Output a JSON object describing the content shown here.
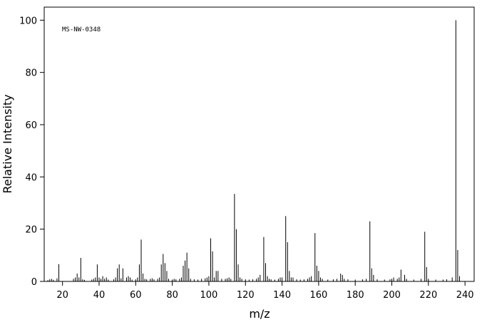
{
  "chart_data": {
    "type": "stem",
    "annotation": "MS-NW-0348",
    "xlabel": "m/z",
    "ylabel": "Relative Intensity",
    "color": "#000000",
    "x": [
      12,
      13,
      14,
      15,
      17,
      18,
      26,
      27,
      28,
      29,
      30,
      31,
      32,
      36,
      37,
      38,
      39,
      40,
      41,
      42,
      43,
      44,
      45,
      48,
      49,
      50,
      51,
      52,
      53,
      55,
      56,
      57,
      58,
      60,
      61,
      62,
      63,
      64,
      65,
      66,
      68,
      69,
      70,
      72,
      73,
      74,
      75,
      76,
      77,
      78,
      80,
      81,
      82,
      84,
      85,
      86,
      87,
      88,
      89,
      90,
      92,
      94,
      96,
      98,
      99,
      100,
      101,
      102,
      103,
      104,
      105,
      107,
      109,
      110,
      111,
      112,
      114,
      115,
      116,
      117,
      118,
      120,
      122,
      124,
      126,
      127,
      128,
      130,
      131,
      132,
      133,
      134,
      136,
      138,
      139,
      140,
      142,
      143,
      144,
      145,
      146,
      148,
      150,
      152,
      154,
      155,
      156,
      158,
      159,
      160,
      161,
      162,
      165,
      168,
      170,
      172,
      173,
      174,
      176,
      180,
      184,
      186,
      188,
      189,
      190,
      192,
      196,
      199,
      200,
      201,
      203,
      204,
      205,
      207,
      208,
      212,
      216,
      218,
      219,
      220,
      224,
      228,
      230,
      233,
      235,
      236,
      237
    ],
    "values": [
      0.5,
      0.8,
      1,
      0.6,
      1.2,
      6.6,
      1,
      1.5,
      3,
      1.5,
      9,
      0.8,
      0.6,
      0.7,
      1,
      1.5,
      6.5,
      1.5,
      1,
      2,
      1,
      1.5,
      0.7,
      0.8,
      1.5,
      5,
      6.5,
      1.2,
      5,
      1.5,
      2,
      1.5,
      0.7,
      0.8,
      1.5,
      6.5,
      16,
      3,
      1,
      0.8,
      1,
      1.2,
      0.8,
      1,
      1.5,
      6.5,
      10.5,
      7,
      4,
      1,
      0.7,
      1,
      0.8,
      1,
      1.5,
      6,
      8,
      11,
      5,
      1,
      0.8,
      0.7,
      1,
      1.2,
      1.5,
      2,
      16.5,
      11.5,
      1.5,
      4,
      4,
      1,
      1,
      1.2,
      1.5,
      1,
      33.5,
      20,
      6.5,
      1.5,
      1,
      0.8,
      0.7,
      0.8,
      1,
      1.5,
      2.5,
      17,
      7,
      2,
      1,
      0.8,
      0.7,
      1,
      1.5,
      1.5,
      25,
      15,
      4,
      1.5,
      1.5,
      0.8,
      0.7,
      0.8,
      1,
      1.5,
      2,
      18.5,
      6,
      4,
      1.5,
      1,
      0.7,
      0.8,
      1,
      3,
      2.5,
      1,
      0.8,
      0.7,
      0.8,
      1,
      23,
      5,
      2.5,
      0.8,
      0.7,
      0.8,
      1,
      1.5,
      1,
      1.5,
      4.5,
      2.5,
      1,
      0.7,
      1,
      19,
      5.5,
      1,
      0.7,
      0.7,
      0.8,
      1.5,
      100,
      12,
      2
    ],
    "xlim": [
      10,
      245
    ],
    "ylim": [
      0,
      105
    ],
    "xticks": [
      20,
      40,
      60,
      80,
      100,
      120,
      140,
      160,
      180,
      200,
      220,
      240
    ],
    "yticks": [
      0,
      20,
      40,
      60,
      80,
      100
    ]
  }
}
